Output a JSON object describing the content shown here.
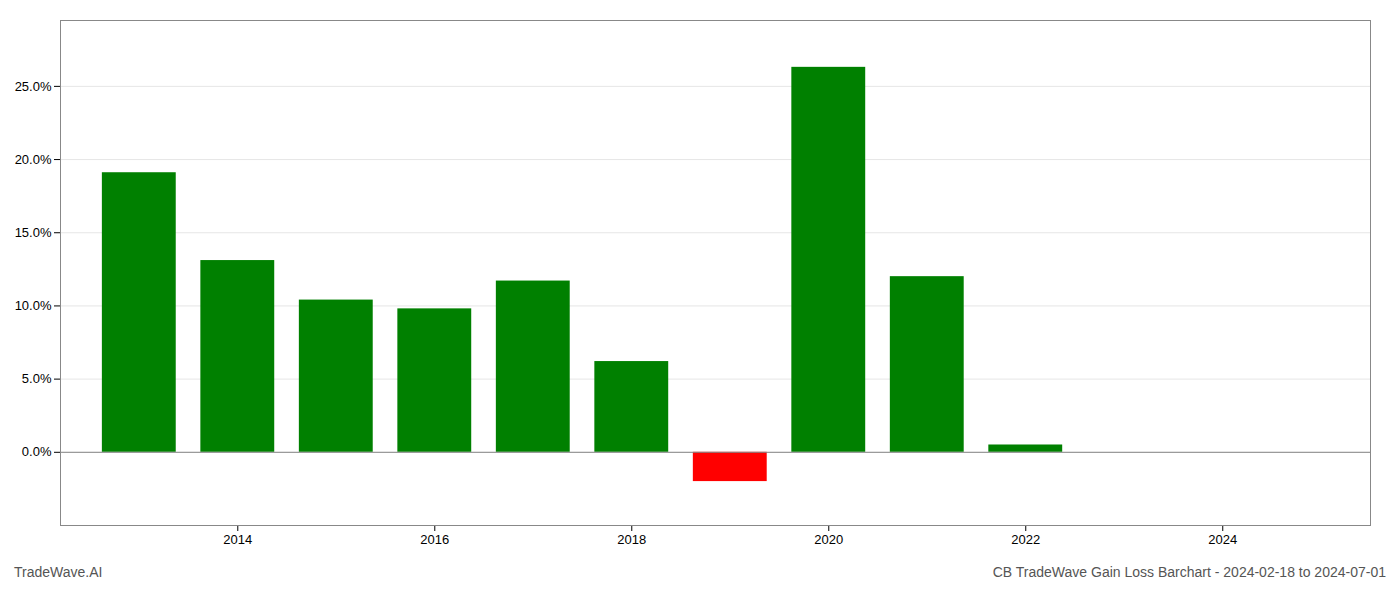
{
  "chart_data": {
    "type": "bar",
    "x": [
      2013,
      2014,
      2015,
      2016,
      2017,
      2018,
      2019,
      2020,
      2021,
      2022
    ],
    "values": [
      0.191,
      0.131,
      0.104,
      0.098,
      0.117,
      0.062,
      -0.02,
      0.263,
      0.12,
      0.005
    ],
    "colors": [
      "#008000",
      "#008000",
      "#008000",
      "#008000",
      "#008000",
      "#008000",
      "#ff0000",
      "#008000",
      "#008000",
      "#008000"
    ],
    "xlim": [
      2012.2,
      2025.5
    ],
    "xticks": [
      2014,
      2016,
      2018,
      2020,
      2022,
      2024
    ],
    "ylim": [
      -0.05,
      0.295
    ],
    "yticks": [
      {
        "value": 0.0,
        "label": "0.0%"
      },
      {
        "value": 0.05,
        "label": "5.0%"
      },
      {
        "value": 0.1,
        "label": "10.0%"
      },
      {
        "value": 0.15,
        "label": "15.0%"
      },
      {
        "value": 0.2,
        "label": "20.0%"
      },
      {
        "value": 0.25,
        "label": "25.0%"
      }
    ],
    "grid": true,
    "annotations": [
      "TradeWave.AI",
      "CB TradeWave Gain Loss Barchart - 2024-02-18 to 2024-07-01"
    ]
  }
}
